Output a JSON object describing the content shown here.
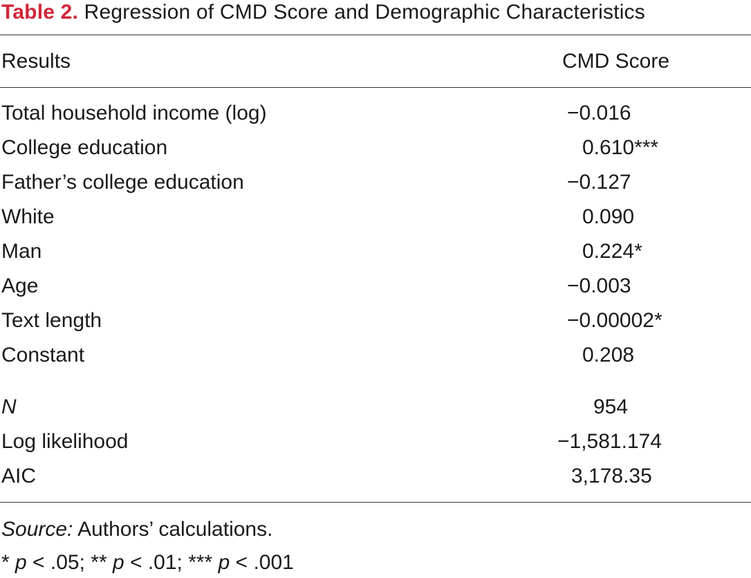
{
  "caption": {
    "label": "Table 2.",
    "title": "Regression of CMD Score and Demographic Characteristics"
  },
  "table": {
    "header": {
      "col1": "Results",
      "col2": "CMD Score"
    },
    "rows": [
      {
        "label": "Total household income (log)",
        "value": "−0.016"
      },
      {
        "label": "College education",
        "value": "0.610***"
      },
      {
        "label": "Father’s college education",
        "value": "−0.127"
      },
      {
        "label": "White",
        "value": "0.090"
      },
      {
        "label": "Man",
        "value": "0.224*"
      },
      {
        "label": "Age",
        "value": "−0.003"
      },
      {
        "label": "Text length",
        "value": "−0.00002*"
      },
      {
        "label": "Constant",
        "value": "0.208"
      }
    ],
    "stats": [
      {
        "label": "N",
        "value": "954"
      },
      {
        "label": "Log likelihood",
        "value": "−1,581.174"
      },
      {
        "label": "AIC",
        "value": "3,178.35"
      }
    ]
  },
  "notes": {
    "source_label": "Source:",
    "source_text": " Authors’ calculations.",
    "sig_star1": "* ",
    "sig_p1": "p",
    "sig_rest1": " < .05; ** ",
    "sig_p2": "p",
    "sig_rest2": " < .01; *** ",
    "sig_p3": "p",
    "sig_rest3": " < .001"
  }
}
